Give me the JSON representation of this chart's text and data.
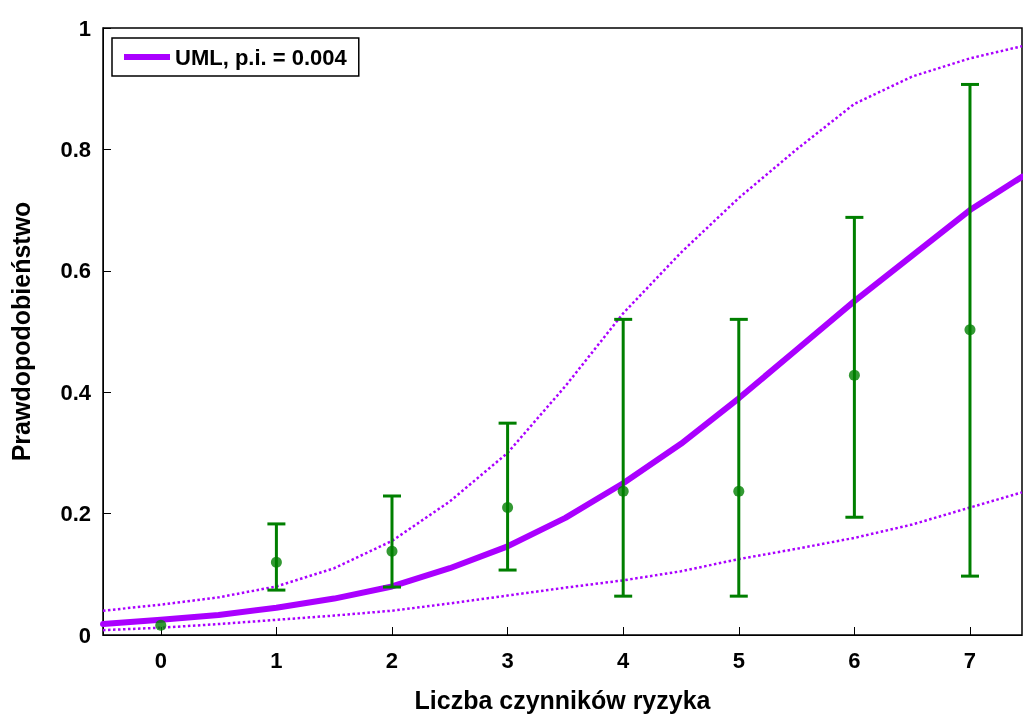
{
  "chart_data": {
    "type": "line",
    "xlabel": "Liczba czynników ryzyka",
    "ylabel": "Prawdopodobieństwo",
    "xlim": [
      -0.5,
      7.45
    ],
    "ylim": [
      0,
      1
    ],
    "xticks": [
      0,
      1,
      2,
      3,
      4,
      5,
      6,
      7
    ],
    "yticks": [
      0,
      0.2,
      0.4,
      0.6,
      0.8,
      1
    ],
    "grid": false,
    "legend": "top left",
    "series": [
      {
        "name": "UML, p.i. = 0.004",
        "color": "#aa00ff",
        "marker": "none",
        "line_style": "solid",
        "x": [
          -0.5,
          0,
          0.5,
          1,
          1.5,
          2,
          2.5,
          3,
          3.5,
          4,
          4.5,
          5,
          5.5,
          6,
          6.5,
          7,
          7.45
        ],
        "values": [
          0.018,
          0.025,
          0.033,
          0.045,
          0.06,
          0.08,
          0.11,
          0.146,
          0.193,
          0.25,
          0.315,
          0.39,
          0.47,
          0.55,
          0.625,
          0.7,
          0.755
        ]
      },
      {
        "color": "#aa00ff",
        "marker": "none",
        "line_style": "dotted",
        "x": [
          -0.5,
          0,
          0.5,
          1,
          1.5,
          2,
          2.5,
          3,
          3.5,
          4,
          4.5,
          5,
          5.5,
          6,
          6.5,
          7,
          7.45
        ],
        "values": [
          0.04,
          0.05,
          0.062,
          0.08,
          0.11,
          0.155,
          0.22,
          0.3,
          0.41,
          0.53,
          0.63,
          0.72,
          0.8,
          0.875,
          0.92,
          0.95,
          0.97
        ]
      },
      {
        "color": "#aa00ff",
        "marker": "none",
        "line_style": "dotted",
        "x": [
          -0.5,
          0,
          0.5,
          1,
          1.5,
          2,
          2.5,
          3,
          3.5,
          4,
          4.5,
          5,
          5.5,
          6,
          6.5,
          7,
          7.45
        ],
        "values": [
          0.008,
          0.012,
          0.018,
          0.025,
          0.032,
          0.04,
          0.052,
          0.065,
          0.078,
          0.09,
          0.105,
          0.125,
          0.142,
          0.16,
          0.182,
          0.21,
          0.235
        ]
      },
      {
        "type": "scatter",
        "color": "#007f00",
        "marker": "circle",
        "x": [
          0,
          1,
          2,
          3,
          4,
          5,
          6,
          7
        ],
        "values": [
          0.016,
          0.12,
          0.138,
          0.21,
          0.237,
          0.237,
          0.428,
          0.503
        ],
        "errors": [
          null,
          [
            0.074,
            0.183
          ],
          [
            0.079,
            0.229
          ],
          [
            0.107,
            0.349
          ],
          [
            0.064,
            0.52
          ],
          [
            0.064,
            0.52
          ],
          [
            0.194,
            0.688
          ],
          [
            0.097,
            0.907
          ]
        ]
      }
    ]
  }
}
